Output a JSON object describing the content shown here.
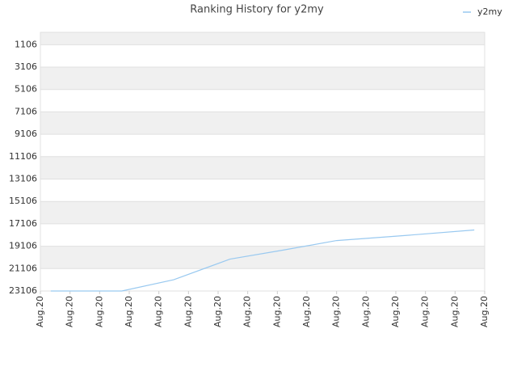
{
  "chart_data": {
    "type": "line",
    "title": "Ranking History for y2my",
    "x": [
      0.35,
      2.75,
      4.5,
      6.4,
      8.2,
      10,
      12.3,
      14.65
    ],
    "series": [
      {
        "name": "y2my",
        "color": "#99c9f0",
        "values": [
          23106,
          23106,
          22100,
          20260,
          19450,
          18600,
          18150,
          17655
        ]
      }
    ],
    "xlim": [
      0,
      15
    ],
    "xticks": [
      {
        "value": 0,
        "label": "Aug.20"
      },
      {
        "value": 1,
        "label": "Aug.20"
      },
      {
        "value": 2,
        "label": "Aug.20"
      },
      {
        "value": 3,
        "label": "Aug.20"
      },
      {
        "value": 4,
        "label": "Aug.20"
      },
      {
        "value": 5,
        "label": "Aug.20"
      },
      {
        "value": 6,
        "label": "Aug.20"
      },
      {
        "value": 7,
        "label": "Aug.20"
      },
      {
        "value": 8,
        "label": "Aug.20"
      },
      {
        "value": 9,
        "label": "Aug.20"
      },
      {
        "value": 10,
        "label": "Aug.20"
      },
      {
        "value": 11,
        "label": "Aug.20"
      },
      {
        "value": 12,
        "label": "Aug.20"
      },
      {
        "value": 13,
        "label": "Aug.20"
      },
      {
        "value": 14,
        "label": "Aug.20"
      },
      {
        "value": 15,
        "label": "Aug.20"
      }
    ],
    "ylim": [
      23106,
      0
    ],
    "yticks": [
      1106,
      3106,
      5106,
      7106,
      9106,
      11106,
      13106,
      15106,
      17106,
      19106,
      21106,
      23106
    ],
    "grid": true,
    "legend": "top-right"
  }
}
